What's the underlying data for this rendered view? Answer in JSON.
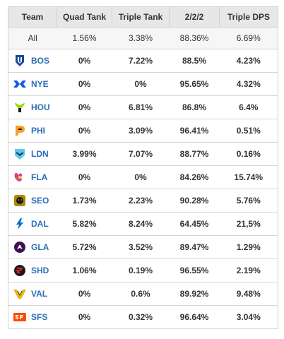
{
  "headers": [
    "Team",
    "Quad Tank",
    "Triple Tank",
    "2/2/2",
    "Triple DPS"
  ],
  "all_row": {
    "team": "All",
    "quad": "1.56%",
    "triple_tank": "3.38%",
    "two_two_two": "88.36%",
    "triple_dps": "6.69%"
  },
  "rows": [
    {
      "team": "BOS",
      "icon": "boston-uprising-logo-icon",
      "quad": "0%",
      "triple_tank": "7.22%",
      "two_two_two": "88.5%",
      "triple_dps": "4.23%"
    },
    {
      "team": "NYE",
      "icon": "new-york-excelsior-logo-icon",
      "quad": "0%",
      "triple_tank": "0%",
      "two_two_two": "95.65%",
      "triple_dps": "4.32%"
    },
    {
      "team": "HOU",
      "icon": "houston-outlaws-logo-icon",
      "quad": "0%",
      "triple_tank": "6.81%",
      "two_two_two": "86.8%",
      "triple_dps": "6.4%"
    },
    {
      "team": "PHI",
      "icon": "philadelphia-fusion-logo-icon",
      "quad": "0%",
      "triple_tank": "3.09%",
      "two_two_two": "96.41%",
      "triple_dps": "0.51%"
    },
    {
      "team": "LDN",
      "icon": "london-spitfire-logo-icon",
      "quad": "3.99%",
      "triple_tank": "7.07%",
      "two_two_two": "88.77%",
      "triple_dps": "0.16%"
    },
    {
      "team": "FLA",
      "icon": "florida-mayhem-logo-icon",
      "quad": "0%",
      "triple_tank": "0%",
      "two_two_two": "84.26%",
      "triple_dps": "15.74%"
    },
    {
      "team": "SEO",
      "icon": "seoul-dynasty-logo-icon",
      "quad": "1.73%",
      "triple_tank": "2.23%",
      "two_two_two": "90.28%",
      "triple_dps": "5.76%"
    },
    {
      "team": "DAL",
      "icon": "dallas-fuel-logo-icon",
      "quad": "5.82%",
      "triple_tank": "8.24%",
      "two_two_two": "64.45%",
      "triple_dps": "21,5%"
    },
    {
      "team": "GLA",
      "icon": "la-gladiators-logo-icon",
      "quad": "5.72%",
      "triple_tank": "3.52%",
      "two_two_two": "89.47%",
      "triple_dps": "1.29%"
    },
    {
      "team": "SHD",
      "icon": "shanghai-dragons-logo-icon",
      "quad": "1.06%",
      "triple_tank": "0.19%",
      "two_two_two": "96.55%",
      "triple_dps": "2.19%"
    },
    {
      "team": "VAL",
      "icon": "la-valiant-logo-icon",
      "quad": "0%",
      "triple_tank": "0.6%",
      "two_two_two": "89.92%",
      "triple_dps": "9.48%"
    },
    {
      "team": "SFS",
      "icon": "san-francisco-shock-logo-icon",
      "quad": "0%",
      "triple_tank": "0.32%",
      "two_two_two": "96.64%",
      "triple_dps": "3.04%"
    }
  ],
  "colors": {
    "header_bg": "#e7e7e7",
    "team_text": "#2c6fb6",
    "all_row_bg": "#f6f6f6",
    "border": "#d6d6d6"
  }
}
